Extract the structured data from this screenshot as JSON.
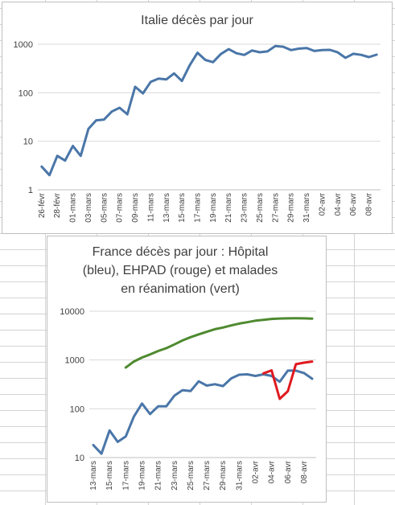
{
  "chart_data": [
    {
      "type": "line",
      "title": "Italie décès par jour",
      "yscale": "log",
      "ylim": [
        1,
        1000
      ],
      "yticks": [
        "1",
        "10",
        "100",
        "1000"
      ],
      "grid": "horizontal",
      "x": [
        "26-févr",
        "27-févr",
        "28-févr",
        "29-févr",
        "01-mars",
        "02-mars",
        "03-mars",
        "04-mars",
        "05-mars",
        "06-mars",
        "07-mars",
        "08-mars",
        "09-mars",
        "10-mars",
        "11-mars",
        "12-mars",
        "13-mars",
        "14-mars",
        "15-mars",
        "16-mars",
        "17-mars",
        "18-mars",
        "19-mars",
        "20-mars",
        "21-mars",
        "22-mars",
        "23-mars",
        "24-mars",
        "25-mars",
        "26-mars",
        "27-mars",
        "28-mars",
        "29-mars",
        "30-mars",
        "31-mars",
        "01-avr",
        "02-avr",
        "03-avr",
        "04-avr",
        "05-avr",
        "06-avr",
        "07-avr",
        "08-avr",
        "09-avr"
      ],
      "xtick_labels": [
        "26-févr",
        "28-févr",
        "01-mars",
        "03-mars",
        "05-mars",
        "07-mars",
        "09-mars",
        "11-mars",
        "13-mars",
        "15-mars",
        "17-mars",
        "19-mars",
        "21-mars",
        "23-mars",
        "25-mars",
        "27-mars",
        "29-mars",
        "31-mars",
        "02-avr",
        "04-avr",
        "06-avr",
        "08-avr"
      ],
      "series": [
        {
          "color": "#4a76a8",
          "values": [
            3,
            2,
            5,
            4,
            8,
            5,
            18,
            27,
            28,
            41,
            49,
            36,
            133,
            97,
            168,
            196,
            189,
            250,
            175,
            368,
            668,
            475,
            427,
            627,
            793,
            651,
            601,
            743,
            683,
            712,
            919,
            889,
            756,
            812,
            837,
            727,
            760,
            766,
            681,
            525,
            636,
            604,
            542,
            610
          ]
        }
      ]
    },
    {
      "type": "line",
      "title": "France décès par jour : Hôpital (bleu),  EHPAD (rouge) et malades en réanimation (vert)",
      "title_lines": [
        "France décès par jour : Hôpital",
        "(bleu),  EHPAD (rouge) et malades",
        "en réanimation (vert)"
      ],
      "yscale": "log",
      "ylim": [
        10,
        10000
      ],
      "yticks": [
        "10",
        "100",
        "1000",
        "10000"
      ],
      "grid": "horizontal",
      "x": [
        "13-mars",
        "14-mars",
        "15-mars",
        "16-mars",
        "17-mars",
        "18-mars",
        "19-mars",
        "20-mars",
        "21-mars",
        "22-mars",
        "23-mars",
        "24-mars",
        "25-mars",
        "26-mars",
        "27-mars",
        "28-mars",
        "29-mars",
        "30-mars",
        "31-mars",
        "01-avr",
        "02-avr",
        "03-avr",
        "04-avr",
        "05-avr",
        "06-avr",
        "07-avr",
        "08-avr",
        "09-avr"
      ],
      "xtick_labels": [
        "13-mars",
        "15-mars",
        "17-mars",
        "19-mars",
        "21-mars",
        "23-mars",
        "25-mars",
        "27-mars",
        "29-mars",
        "31-mars",
        "02-avr",
        "04-avr",
        "06-avr",
        "08-avr"
      ],
      "series": [
        {
          "color": "#4a76a8",
          "values": [
            18,
            12,
            36,
            21,
            27,
            69,
            128,
            78,
            112,
            112,
            186,
            240,
            231,
            365,
            299,
            319,
            292,
            418,
            499,
            509,
            471,
            509,
            471,
            357,
            605,
            605,
            541,
            412
          ]
        },
        {
          "color": "#e0191f",
          "values": [
            null,
            null,
            null,
            null,
            null,
            null,
            null,
            null,
            null,
            null,
            null,
            null,
            null,
            null,
            null,
            null,
            null,
            null,
            null,
            null,
            null,
            532,
            612,
            160,
            229,
            820,
            880,
            930
          ]
        },
        {
          "color": "#4e8a2f",
          "values": [
            null,
            null,
            null,
            null,
            699,
            931,
            1122,
            1297,
            1525,
            1746,
            2082,
            2516,
            2935,
            3351,
            3787,
            4273,
            4632,
            5107,
            5565,
            5940,
            6399,
            6662,
            6948,
            7072,
            7132,
            7148,
            7131,
            7066
          ]
        }
      ]
    }
  ]
}
